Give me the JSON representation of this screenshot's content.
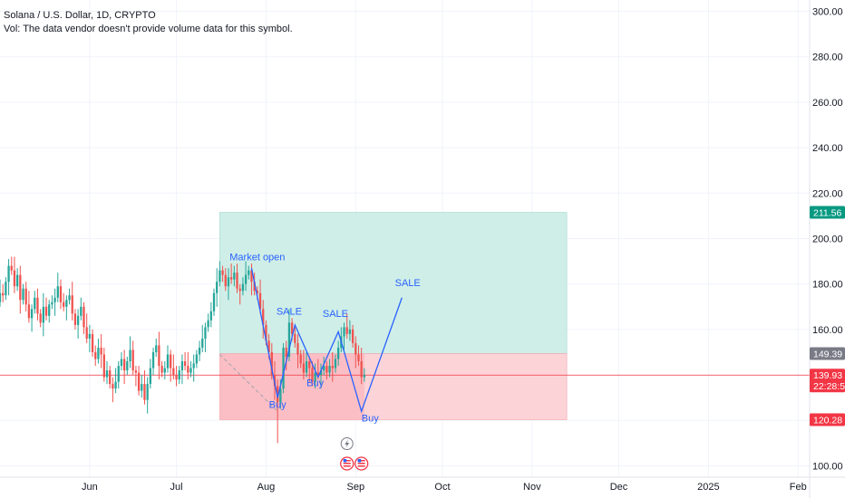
{
  "legend": {
    "symbol": "Solana / U.S. Dollar, 1D, CRYPTO",
    "volume_note": "Vol: The data vendor doesn't provide volume data for this symbol."
  },
  "colors": {
    "up": "#26a69a",
    "down": "#ef5350",
    "profit_zone": "#cfeee7",
    "loss_zone": "#fcd4d7",
    "line_blue": "#2962ff",
    "badge_green": "#089981",
    "badge_red": "#f23645",
    "badge_gray": "#787b86",
    "grid": "#f0f3fa"
  },
  "chart_data": {
    "type": "candlestick",
    "y_axis": {
      "min": 95,
      "max": 305,
      "ticks": [
        100,
        120,
        140,
        160,
        180,
        200,
        220,
        240,
        260,
        280,
        300
      ],
      "tick_labels": [
        "100.00",
        "120.00",
        "140.00",
        "160.00",
        "180.00",
        "200.00",
        "220.00",
        "240.00",
        "260.00",
        "280.00",
        "300.00"
      ]
    },
    "x_axis": {
      "start": "2024-05-01",
      "end": "2025-02-05",
      "ticks": [
        {
          "date": "2024-06-01",
          "label": "Jun"
        },
        {
          "date": "2024-07-01",
          "label": "Jul"
        },
        {
          "date": "2024-08-01",
          "label": "Aug"
        },
        {
          "date": "2024-09-01",
          "label": "Sep"
        },
        {
          "date": "2024-10-01",
          "label": "Oct"
        },
        {
          "date": "2024-11-01",
          "label": "Nov"
        },
        {
          "date": "2024-12-01",
          "label": "Dec"
        },
        {
          "date": "2025-01-01",
          "label": "2025"
        },
        {
          "date": "2025-02-01",
          "label": "Feb"
        }
      ]
    },
    "candles_start": "2024-04-21",
    "closes": [
      143,
      149,
      141,
      146,
      152,
      158,
      156,
      162,
      168,
      172,
      176,
      175,
      181,
      188,
      186,
      179,
      184,
      173,
      178,
      171,
      165,
      169,
      174,
      167,
      163,
      170,
      166,
      171,
      172,
      174,
      179,
      172,
      170,
      173,
      175,
      167,
      162,
      166,
      170,
      161,
      156,
      158,
      150,
      147,
      152,
      149,
      139,
      142,
      136,
      134,
      137,
      144,
      147,
      142,
      146,
      151,
      142,
      141,
      133,
      136,
      129,
      136,
      143,
      150,
      153,
      144,
      141,
      143,
      149,
      143,
      140,
      138,
      142,
      146,
      144,
      141,
      143,
      145,
      149,
      152,
      156,
      161,
      164,
      168,
      176,
      181,
      186,
      184,
      179,
      183,
      182,
      185,
      178,
      177,
      180,
      184,
      186,
      181,
      177,
      176,
      169,
      162,
      155,
      150,
      140,
      135,
      128,
      134,
      152,
      148,
      163,
      158,
      154,
      149,
      145,
      141,
      146,
      143,
      137,
      141,
      140,
      142,
      144,
      141,
      144,
      143,
      147,
      152,
      157,
      161,
      158,
      160,
      154,
      149,
      146,
      139,
      140
    ],
    "positions": [
      {
        "type": "long",
        "entry": 149.39,
        "target": 211.56,
        "stop": 120.28,
        "start": "2024-07-16",
        "end": "2024-11-13"
      }
    ],
    "price_badges": [
      {
        "label": "211.56",
        "value": 211.56,
        "kind": "target"
      },
      {
        "label": "149.39",
        "value": 149.39,
        "kind": "entry"
      },
      {
        "label": "139.93",
        "value": 139.93,
        "kind": "last",
        "countdown": "22:28:50"
      },
      {
        "label": "120.28",
        "value": 120.28,
        "kind": "stop"
      }
    ],
    "last_price": 139.93,
    "projection_path": [
      {
        "date": "2024-07-27",
        "price": 187
      },
      {
        "date": "2024-08-05",
        "price": 130
      },
      {
        "date": "2024-08-11",
        "price": 162
      },
      {
        "date": "2024-08-19",
        "price": 139
      },
      {
        "date": "2024-08-26",
        "price": 159
      },
      {
        "date": "2024-09-03",
        "price": 124
      },
      {
        "date": "2024-09-17",
        "price": 174
      }
    ],
    "dashed_path": [
      {
        "date": "2024-07-16",
        "price": 149
      },
      {
        "date": "2024-08-05",
        "price": 124
      }
    ],
    "annotations": [
      {
        "text": "Market open",
        "date": "2024-07-29",
        "price": 190.5
      },
      {
        "text": "SALE",
        "date": "2024-08-09",
        "price": 166.5
      },
      {
        "text": "SALE",
        "date": "2024-08-25",
        "price": 165.5
      },
      {
        "text": "Buy",
        "date": "2024-08-05",
        "price": 125.5
      },
      {
        "text": "Buy",
        "date": "2024-08-18",
        "price": 135
      },
      {
        "text": "Buy",
        "date": "2024-09-06",
        "price": 119.5
      },
      {
        "text": "SALE",
        "date": "2024-09-19",
        "price": 179
      }
    ],
    "event_markers": [
      {
        "icon": "lightning-icon",
        "date": "2024-08-29"
      },
      {
        "icon": "us-flag-icon",
        "date": "2024-08-29"
      },
      {
        "icon": "us-flag-icon",
        "date": "2024-09-03"
      }
    ]
  }
}
